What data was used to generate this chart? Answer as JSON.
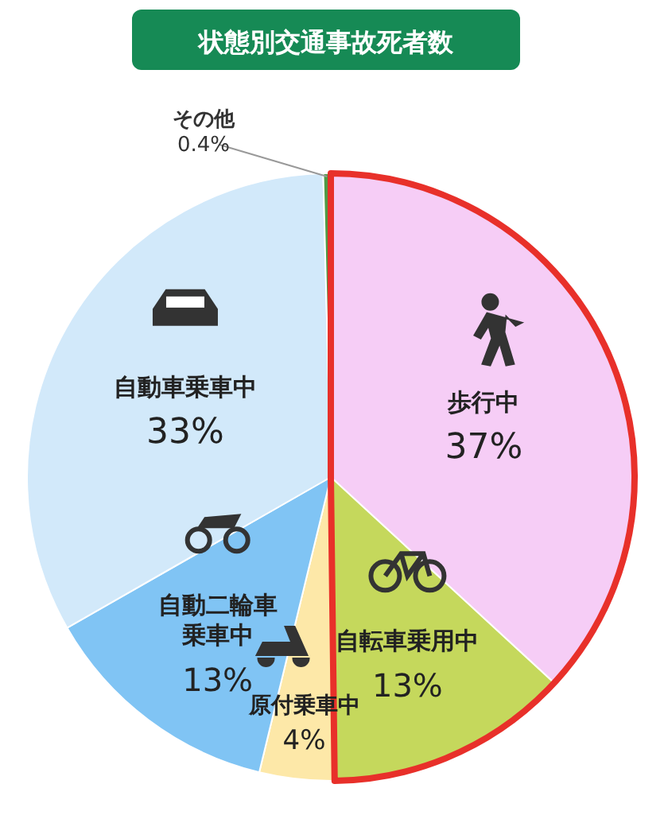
{
  "chart_data": {
    "type": "pie",
    "title": "状態別交通事故死者数",
    "categories": [
      "歩行中",
      "自転車乗用中",
      "原付乗車中",
      "自動二輪車乗車中",
      "自動車乗車中",
      "その他"
    ],
    "values": [
      37,
      13,
      4,
      13,
      33,
      0.4
    ],
    "value_labels": [
      "37%",
      "13%",
      "4%",
      "13%",
      "33%",
      "0.4%"
    ],
    "colors": [
      "#f6cdf6",
      "#c5d85c",
      "#fde8a8",
      "#80c4f4",
      "#d2e9fa",
      "#4f9a45"
    ]
  }
}
